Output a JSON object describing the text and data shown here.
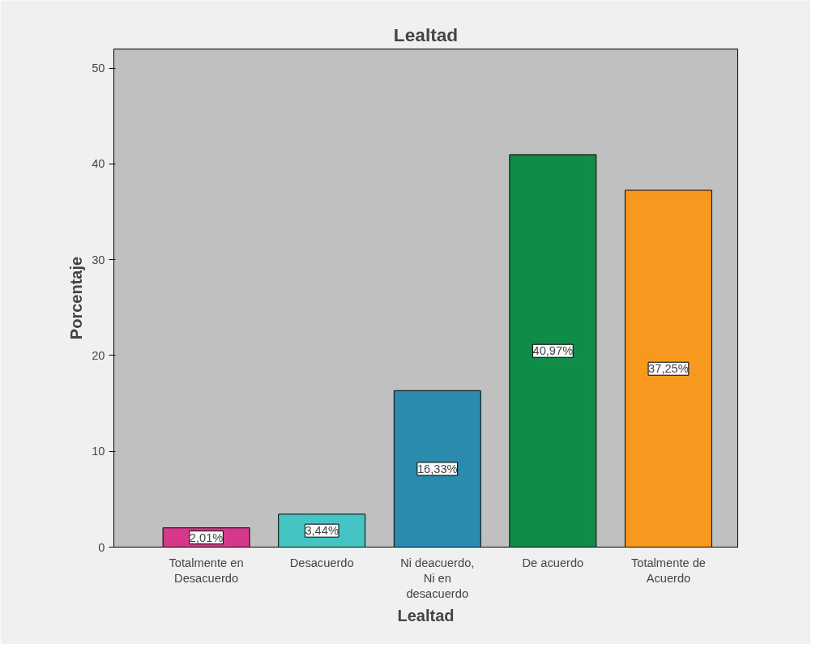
{
  "chart_data": {
    "type": "bar",
    "title": "Lealtad",
    "xlabel": "Lealtad",
    "ylabel": "Porcentaje",
    "categories": [
      "Totalmente en Desacuerdo",
      "Desacuerdo",
      "Ni deacuerdo, Ni en desacuerdo",
      "De acuerdo",
      "Totalmente de Acuerdo"
    ],
    "values": [
      2.01,
      3.44,
      16.33,
      40.97,
      37.25
    ],
    "value_labels": [
      "2,01%",
      "3,44%",
      "16,33%",
      "40,97%",
      "37,25%"
    ],
    "colors": [
      "#d6398c",
      "#45c4c4",
      "#2a8bad",
      "#0f8c47",
      "#f7991f"
    ],
    "ylim": [
      0,
      52
    ],
    "yticks": [
      0,
      10,
      20,
      30,
      40,
      50
    ],
    "grid": false
  }
}
